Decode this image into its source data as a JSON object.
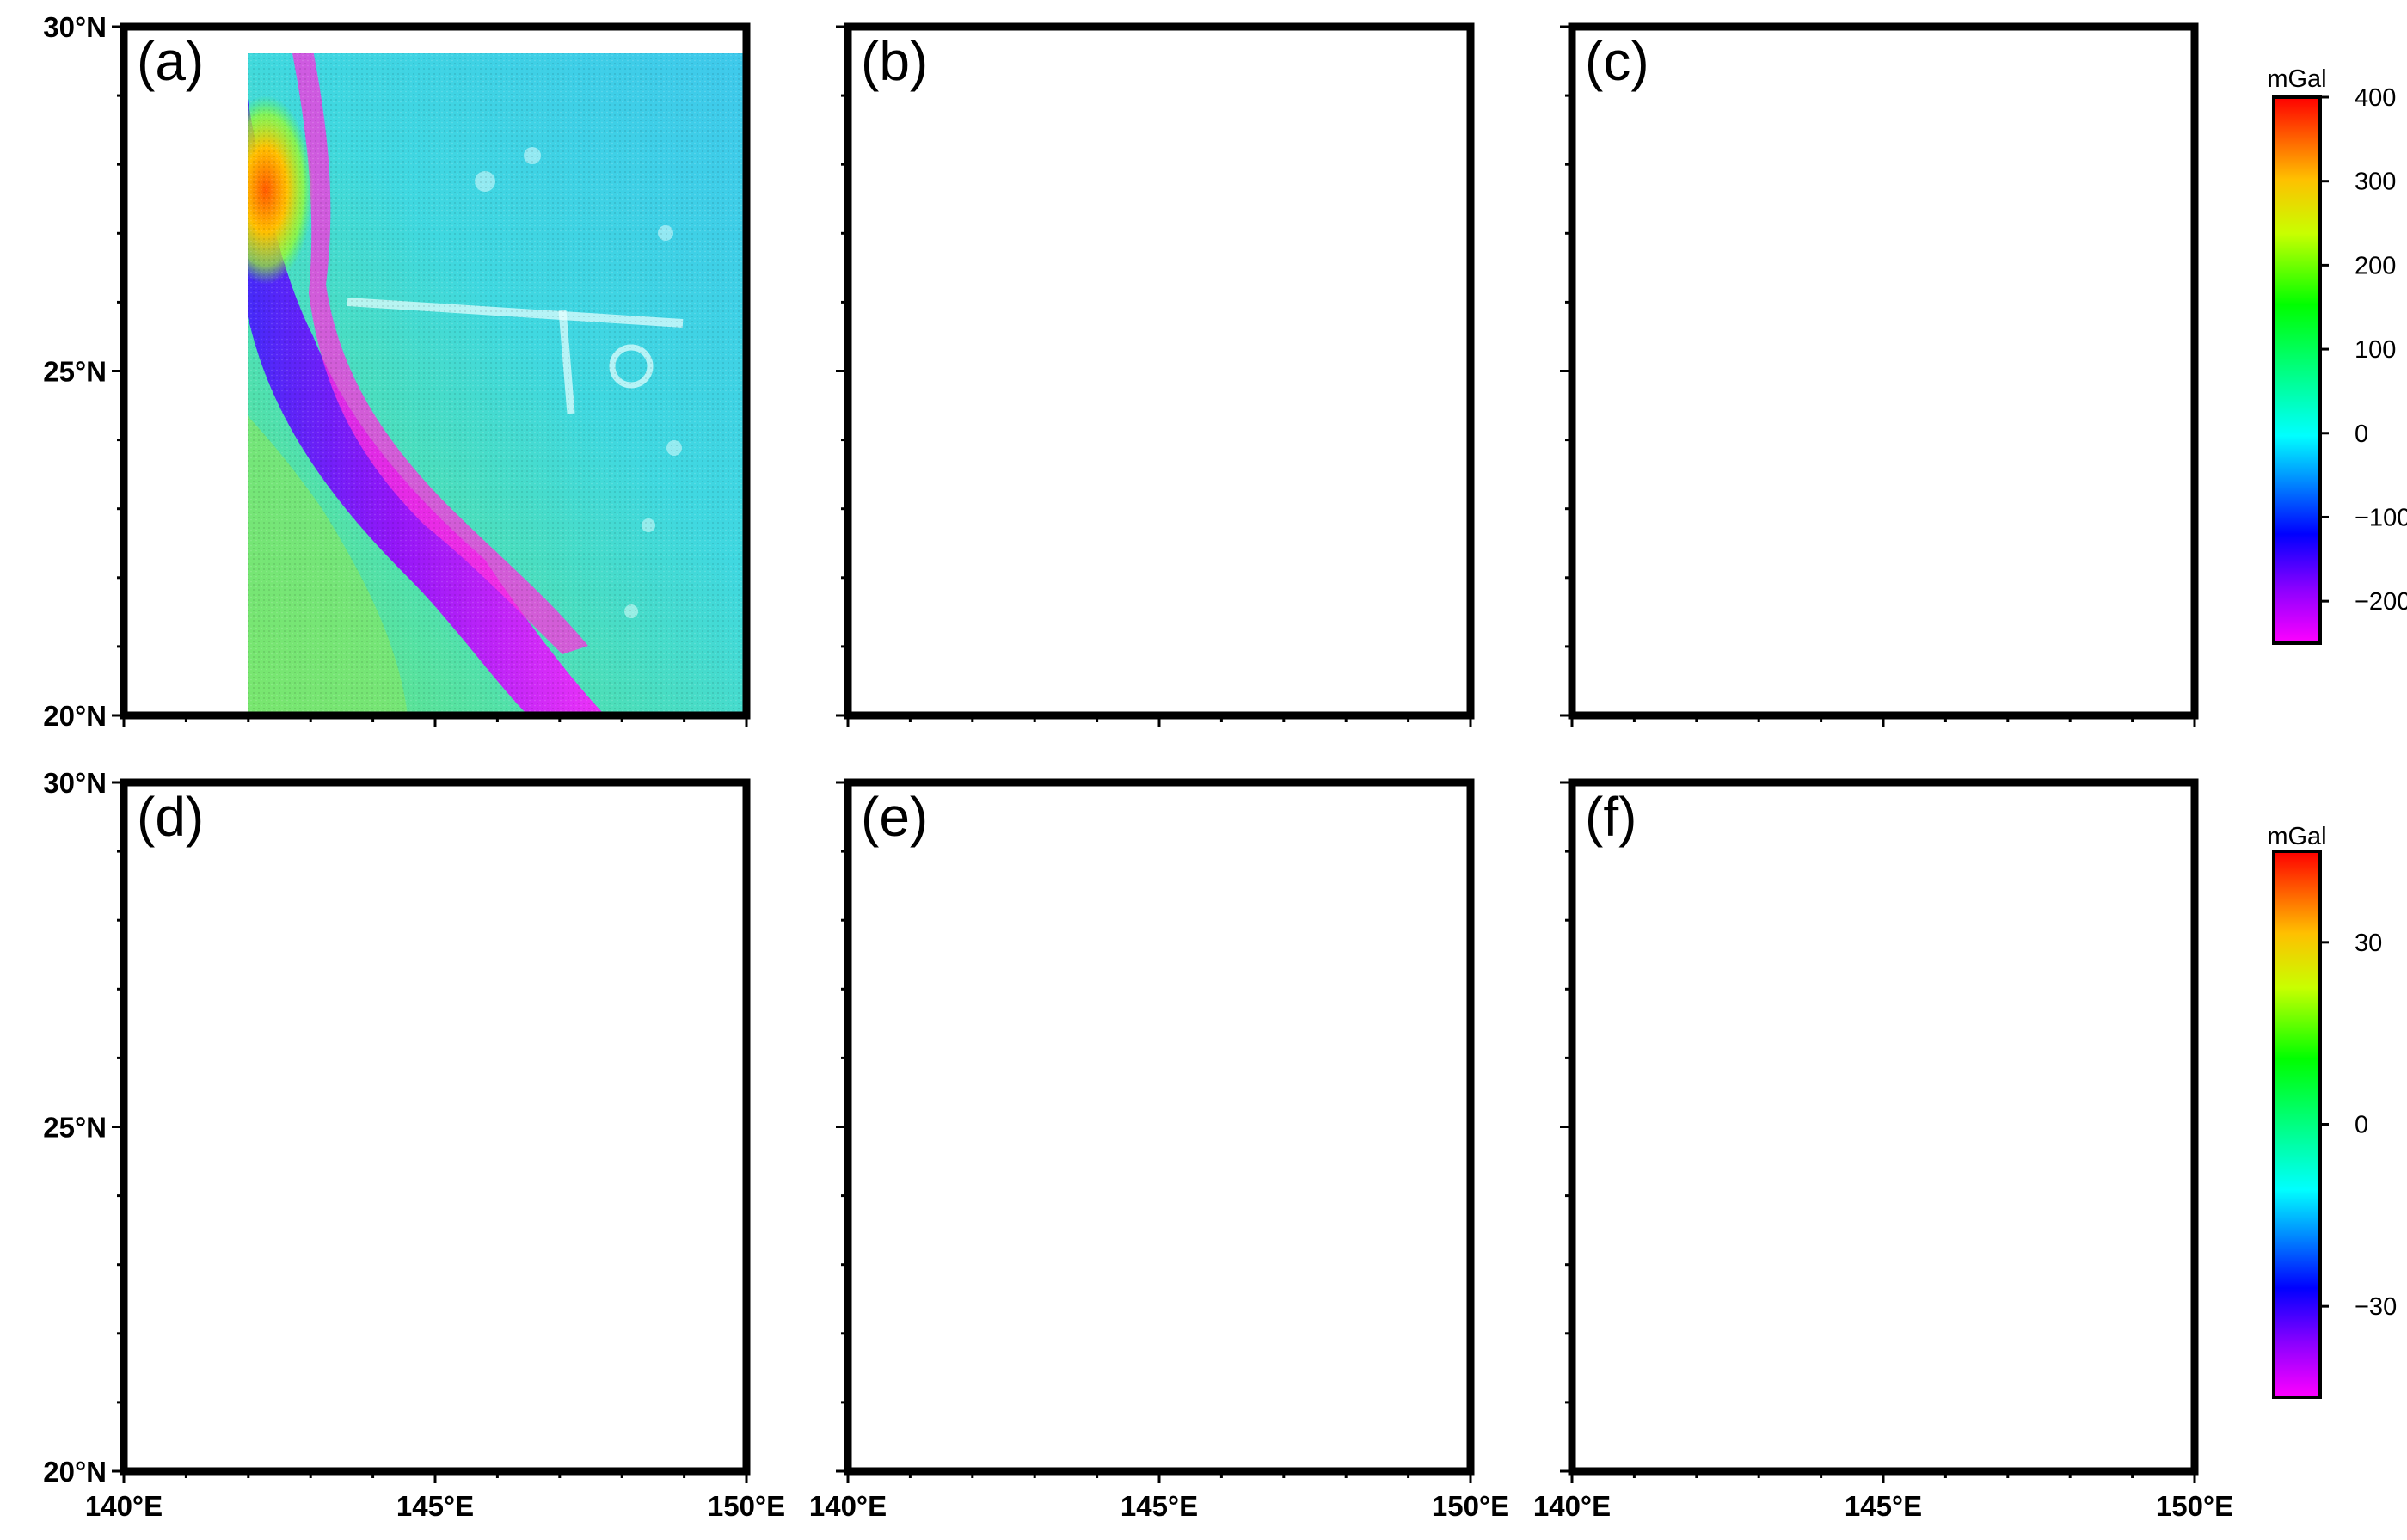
{
  "axes": {
    "lat_min": 20,
    "lat_max": 30,
    "lon_min": 140,
    "lon_max": 150,
    "lat_labels": [
      "20°N",
      "25°N",
      "30°N"
    ],
    "lon_labels_row": [
      "140°E",
      "145°E",
      "150°E"
    ]
  },
  "panels": [
    {
      "tag": "(a)",
      "row": "top",
      "kind": "gravity"
    },
    {
      "tag": "(b)",
      "row": "top",
      "kind": "gravity"
    },
    {
      "tag": "(c)",
      "row": "top",
      "kind": "gravity"
    },
    {
      "tag": "(d)",
      "row": "bottom",
      "kind": "residual"
    },
    {
      "tag": "(e)",
      "row": "bottom",
      "kind": "residual"
    },
    {
      "tag": "(f)",
      "row": "bottom",
      "kind": "residual"
    }
  ],
  "colorbar_top": {
    "unit": "mGal",
    "min": -250,
    "max": 400,
    "labels": [
      "400",
      "300",
      "200",
      "100",
      "0",
      "−100",
      "−200"
    ],
    "values": [
      400,
      300,
      200,
      100,
      0,
      -100,
      -200
    ]
  },
  "colorbar_bottom": {
    "unit": "mGal",
    "min": -45,
    "max": 45,
    "labels": [
      "30",
      "0",
      "−30"
    ],
    "values": [
      30,
      0,
      -30
    ]
  },
  "colors": {
    "residual_background": "#808080",
    "frame": "#000000"
  }
}
